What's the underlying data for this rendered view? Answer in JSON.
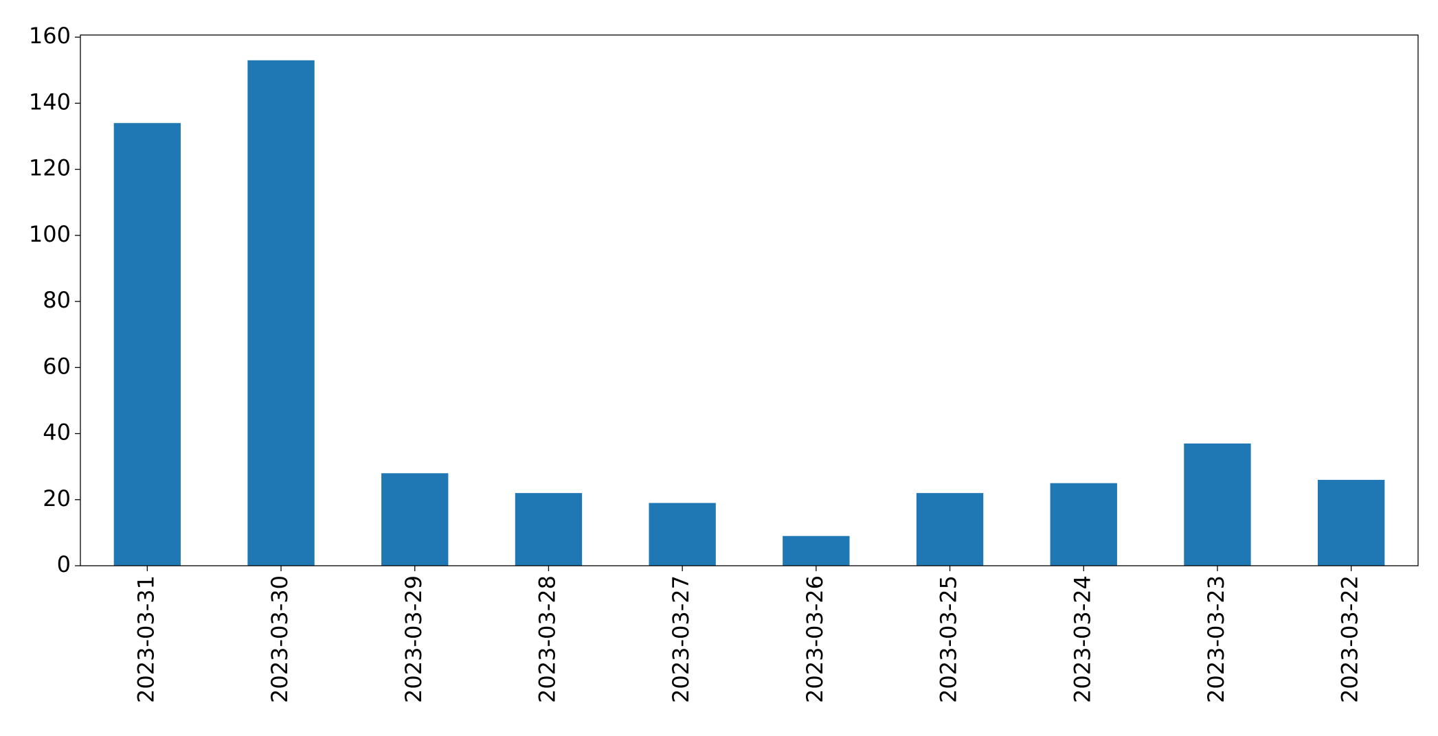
{
  "chart_data": {
    "type": "bar",
    "categories": [
      "2023-03-31",
      "2023-03-30",
      "2023-03-29",
      "2023-03-28",
      "2023-03-27",
      "2023-03-26",
      "2023-03-25",
      "2023-03-24",
      "2023-03-23",
      "2023-03-22"
    ],
    "values": [
      134,
      153,
      28,
      22,
      19,
      9,
      22,
      25,
      37,
      26
    ],
    "color": "#1f77b4",
    "ylim": [
      0,
      160.65
    ],
    "yticks": [
      0,
      20,
      40,
      60,
      80,
      100,
      120,
      140,
      160
    ],
    "grid": false
  }
}
